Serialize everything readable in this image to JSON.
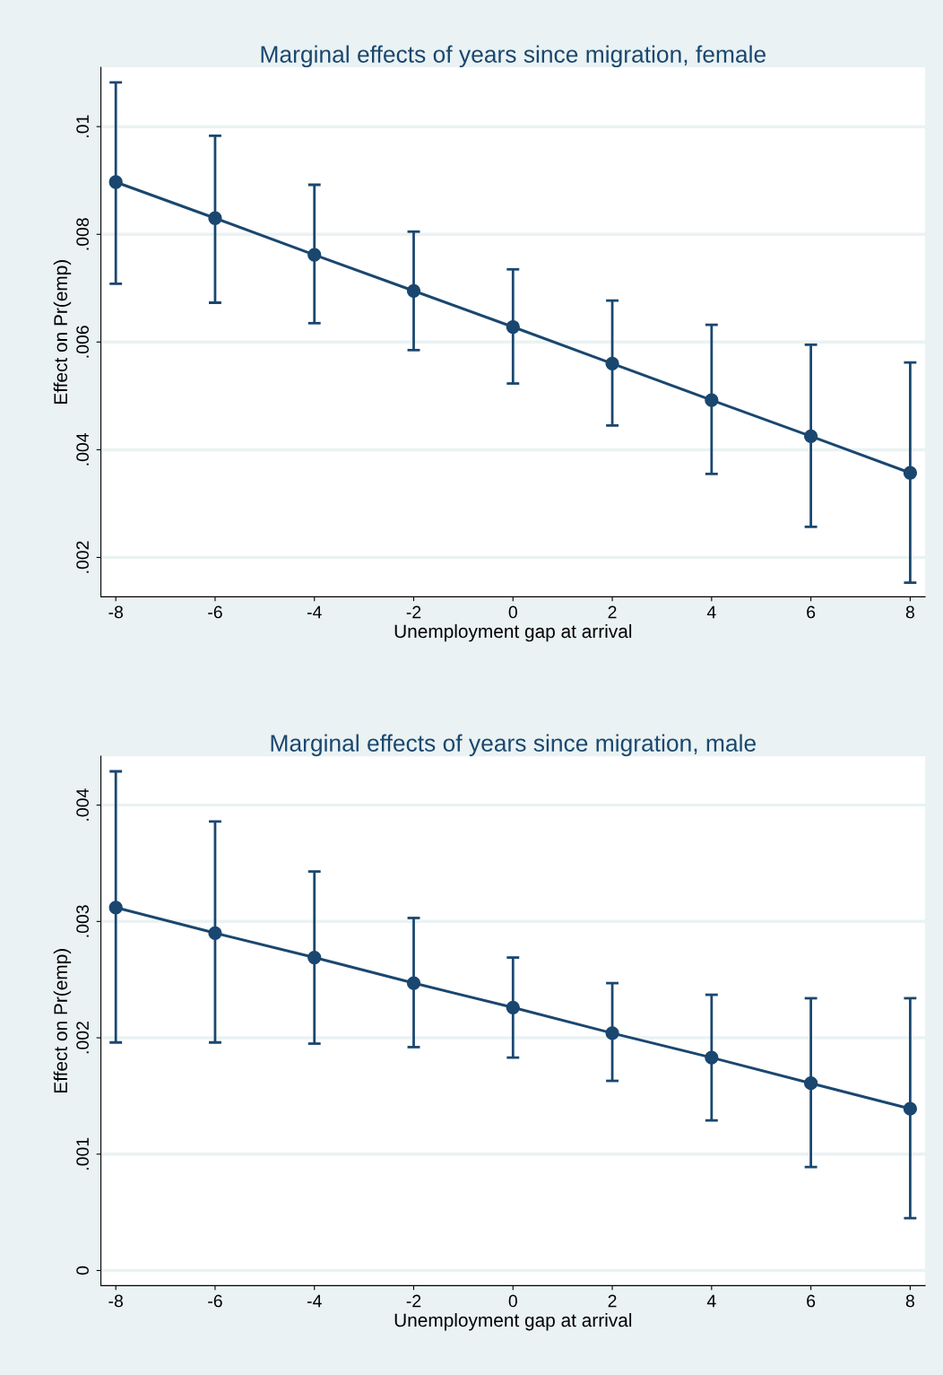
{
  "chart_data": [
    {
      "type": "line",
      "title": "Marginal effects of years since migration, female",
      "xlabel": "Unemployment gap at arrival",
      "ylabel": "Effect on Pr(emp)",
      "x": [
        -8,
        -6,
        -4,
        -2,
        0,
        2,
        4,
        6,
        8
      ],
      "series": [
        {
          "color": "#1a476f",
          "values": [
            0.00897,
            0.0083,
            0.00762,
            0.00695,
            0.00628,
            0.0056,
            0.00492,
            0.00425,
            0.00357
          ],
          "errors": [
            [
              0.00708,
              0.01082
            ],
            [
              0.00673,
              0.00983
            ],
            [
              0.00635,
              0.00892
            ],
            [
              0.00585,
              0.00805
            ],
            [
              0.00523,
              0.00735
            ],
            [
              0.00445,
              0.00677
            ],
            [
              0.00355,
              0.00632
            ],
            [
              0.00257,
              0.00595
            ],
            [
              0.00153,
              0.00562
            ]
          ]
        }
      ],
      "xlim": [
        -8.3,
        8.3
      ],
      "xticks": [
        -8,
        -6,
        -4,
        -2,
        0,
        2,
        4,
        6,
        8
      ],
      "ylim": [
        0.00127,
        0.0111
      ],
      "yticks": [
        {
          "value": 0.002,
          "label": ".002"
        },
        {
          "value": 0.004,
          "label": ".004"
        },
        {
          "value": 0.006,
          "label": ".006"
        },
        {
          "value": 0.008,
          "label": ".008"
        },
        {
          "value": 0.01,
          "label": ".01"
        }
      ],
      "grid": "y",
      "marker": "circle",
      "line_style": "solid"
    },
    {
      "type": "line",
      "title": "Marginal effects of years since migration, male",
      "xlabel": "Unemployment gap at arrival",
      "ylabel": "Effect on Pr(emp)",
      "x": [
        -8,
        -6,
        -4,
        -2,
        0,
        2,
        4,
        6,
        8
      ],
      "series": [
        {
          "color": "#1a476f",
          "values": [
            0.00312,
            0.0029,
            0.00269,
            0.00247,
            0.00226,
            0.00204,
            0.00183,
            0.00161,
            0.00139
          ],
          "errors": [
            [
              0.00196,
              0.00429
            ],
            [
              0.00196,
              0.00386
            ],
            [
              0.00195,
              0.00343
            ],
            [
              0.00192,
              0.00303
            ],
            [
              0.00183,
              0.00269
            ],
            [
              0.00163,
              0.00247
            ],
            [
              0.00129,
              0.00237
            ],
            [
              0.00089,
              0.00234
            ],
            [
              0.00045,
              0.00234
            ]
          ]
        }
      ],
      "xlim": [
        -8.3,
        8.3
      ],
      "xticks": [
        -8,
        -6,
        -4,
        -2,
        0,
        2,
        4,
        6,
        8
      ],
      "ylim": [
        -0.00013,
        0.00442
      ],
      "yticks": [
        {
          "value": 0,
          "label": "0"
        },
        {
          "value": 0.001,
          "label": ".001"
        },
        {
          "value": 0.002,
          "label": ".002"
        },
        {
          "value": 0.003,
          "label": ".003"
        },
        {
          "value": 0.004,
          "label": ".004"
        }
      ],
      "grid": "y",
      "marker": "circle",
      "line_style": "solid"
    }
  ]
}
